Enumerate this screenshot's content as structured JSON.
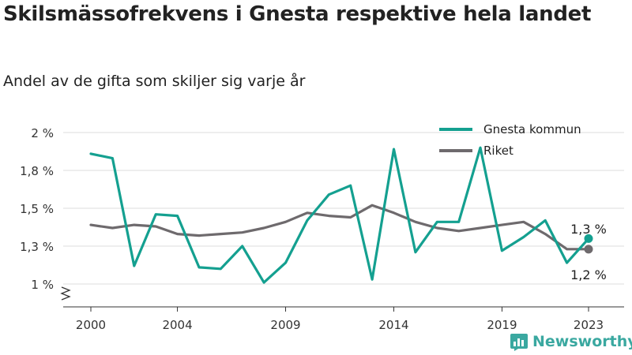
{
  "title": "Skilsmässofrekvens i Gnesta respektive hela landet",
  "subtitle": "Andel av de gifta som skiljer sig varje år",
  "brand": "Newsworthy",
  "colors": {
    "gnesta": "#14a090",
    "riket": "#6e6a6d",
    "grid": "#dcdcdc",
    "axis": "#333333"
  },
  "chart_data": {
    "type": "line",
    "x": [
      2000,
      2001,
      2002,
      2003,
      2004,
      2005,
      2006,
      2007,
      2008,
      2009,
      2010,
      2011,
      2012,
      2013,
      2014,
      2015,
      2016,
      2017,
      2018,
      2019,
      2020,
      2021,
      2022,
      2023
    ],
    "series": [
      {
        "name": "Gnesta kommun",
        "color": "#14a090",
        "values": [
          1.86,
          1.83,
          1.12,
          1.46,
          1.45,
          1.11,
          1.1,
          1.25,
          1.01,
          1.14,
          1.42,
          1.59,
          1.65,
          1.03,
          1.89,
          1.21,
          1.41,
          1.41,
          1.9,
          1.22,
          1.31,
          1.42,
          1.14,
          1.3
        ]
      },
      {
        "name": "Riket",
        "color": "#6e6a6d",
        "values": [
          1.39,
          1.37,
          1.39,
          1.38,
          1.33,
          1.32,
          1.33,
          1.34,
          1.37,
          1.41,
          1.47,
          1.45,
          1.44,
          1.52,
          1.47,
          1.41,
          1.37,
          1.35,
          1.37,
          1.39,
          1.41,
          1.33,
          1.23,
          1.23
        ]
      }
    ],
    "ylim": [
      1.0,
      2.0
    ],
    "yticks": [
      1.0,
      1.25,
      1.5,
      1.75,
      2.0
    ],
    "ytick_labels": [
      "1 %",
      "1,3 %",
      "1,5 %",
      "1,8 %",
      "2 %"
    ],
    "xticks": [
      2000,
      2004,
      2009,
      2014,
      2019,
      2023
    ],
    "xtick_labels": [
      "2000",
      "2004",
      "2009",
      "2014",
      "2019",
      "2023"
    ],
    "end_labels": [
      "1,3 %",
      "1,2 %"
    ],
    "legend": [
      "Gnesta kommun",
      "Riket"
    ],
    "legend_position": "top-right",
    "grid": true
  }
}
